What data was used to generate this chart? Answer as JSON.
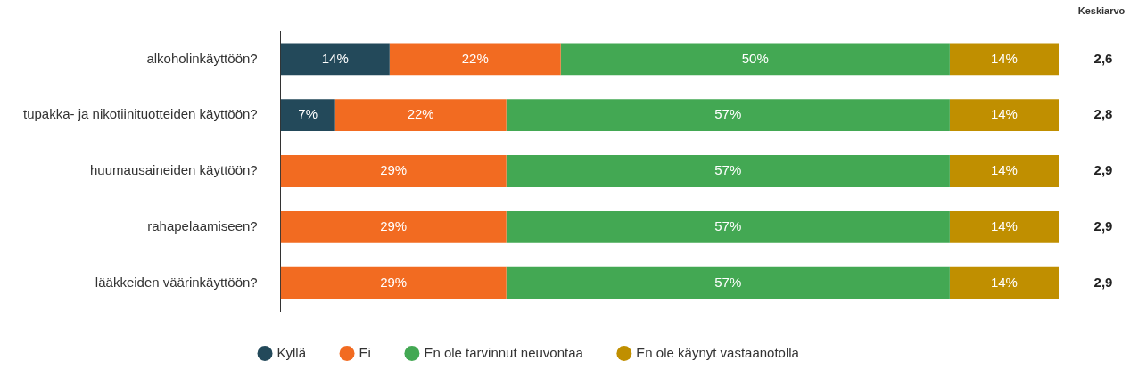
{
  "chart_data": {
    "type": "bar",
    "orientation": "horizontal",
    "stacked": true,
    "categories": [
      "alkoholinkäyttöön?",
      "tupakka- ja nikotiinituotteiden käyttöön?",
      "huumausaineiden käyttöön?",
      "rahapelaamiseen?",
      "lääkkeiden väärinkäyttöön?"
    ],
    "series": [
      {
        "name": "Kyllä",
        "color": "#23495a",
        "values": [
          14,
          7,
          null,
          null,
          null
        ],
        "value_labels": [
          "14%",
          "7%",
          null,
          null,
          null
        ]
      },
      {
        "name": "Ei",
        "color": "#f26b21",
        "values": [
          22,
          22,
          29,
          29,
          29
        ],
        "value_labels": [
          "22%",
          "22%",
          "29%",
          "29%",
          "29%"
        ]
      },
      {
        "name": "En ole tarvinnut neuvontaa",
        "color": "#43a853",
        "values": [
          50,
          57,
          57,
          57,
          57
        ],
        "value_labels": [
          "50%",
          "57%",
          "57%",
          "57%",
          "57%"
        ]
      },
      {
        "name": "En ole käynyt vastaanotolla",
        "color": "#c08f00",
        "values": [
          14,
          14,
          14,
          14,
          14
        ],
        "value_labels": [
          "14%",
          "14%",
          "14%",
          "14%",
          "14%"
        ]
      }
    ],
    "xlim": [
      0,
      100
    ],
    "tick_labels": "y",
    "legend": "bottom",
    "annotations": [
      "Keskiarvo",
      "2,6",
      "2,8",
      "2,9",
      "2,9",
      "2,9"
    ]
  }
}
